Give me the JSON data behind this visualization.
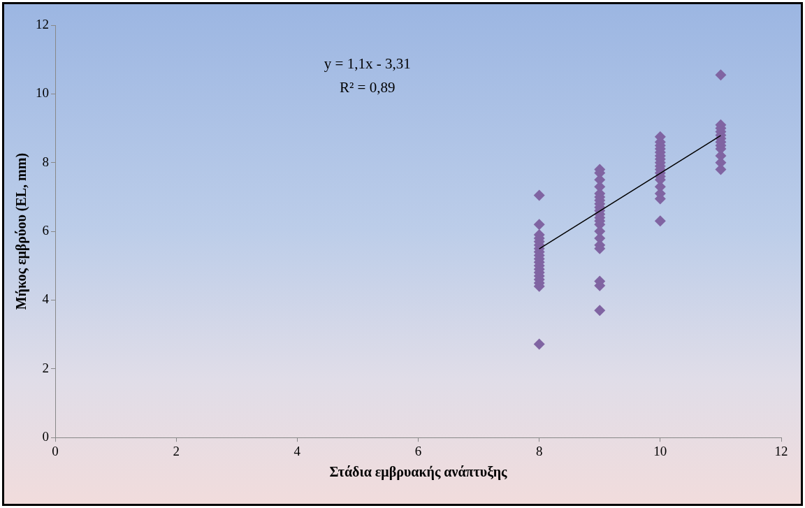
{
  "chart_data": {
    "type": "scatter",
    "xlabel": "Στάδια εμβρυακής ανάπτυξης",
    "ylabel": "Μήκος εμβρύου (EL, mm)",
    "xlim": [
      0,
      12
    ],
    "xticks": [
      0,
      2,
      4,
      6,
      8,
      10,
      12
    ],
    "ylim": [
      0,
      12
    ],
    "yticks": [
      0,
      2,
      4,
      6,
      8,
      10,
      12
    ],
    "grid": false,
    "legend": false,
    "annotations": [
      "y = 1,1x - 3,31",
      "R² = 0,89"
    ],
    "series": [
      {
        "color": "#8064a2",
        "marker": "diamond",
        "x": [
          8,
          8,
          8,
          8,
          8,
          8,
          8,
          8,
          8,
          8,
          8,
          8,
          8,
          8,
          8,
          8,
          8,
          8,
          8,
          9,
          9,
          9,
          9,
          9,
          9,
          9,
          9,
          9,
          9,
          9,
          9,
          9,
          9,
          9,
          9,
          9,
          9,
          9,
          9,
          9,
          10,
          10,
          10,
          10,
          10,
          10,
          10,
          10,
          10,
          10,
          10,
          10,
          10,
          10,
          10,
          10,
          10,
          11,
          11,
          11,
          11,
          11,
          11,
          11,
          11,
          11,
          11,
          11,
          11
        ],
        "values": [
          7.05,
          6.2,
          5.9,
          5.8,
          5.7,
          5.6,
          5.5,
          5.4,
          5.3,
          5.2,
          5.1,
          5.0,
          4.9,
          4.8,
          4.7,
          4.6,
          4.5,
          4.4,
          2.72,
          7.8,
          7.7,
          7.5,
          7.3,
          7.1,
          7.0,
          6.9,
          6.8,
          6.7,
          6.6,
          6.5,
          6.4,
          6.3,
          6.2,
          6.0,
          5.8,
          5.6,
          5.5,
          4.55,
          4.42,
          3.7,
          8.75,
          8.6,
          8.5,
          8.4,
          8.3,
          8.2,
          8.1,
          8.0,
          7.9,
          7.8,
          7.7,
          7.6,
          7.5,
          7.3,
          7.1,
          6.95,
          6.3,
          10.55,
          9.1,
          9.0,
          8.9,
          8.8,
          8.7,
          8.6,
          8.5,
          8.4,
          8.2,
          8.0,
          7.8
        ]
      },
      {
        "type": "line",
        "color": "#000000",
        "marker": "none",
        "line_style": "solid",
        "x": [
          8,
          11
        ],
        "values": [
          5.49,
          8.79
        ]
      }
    ]
  }
}
